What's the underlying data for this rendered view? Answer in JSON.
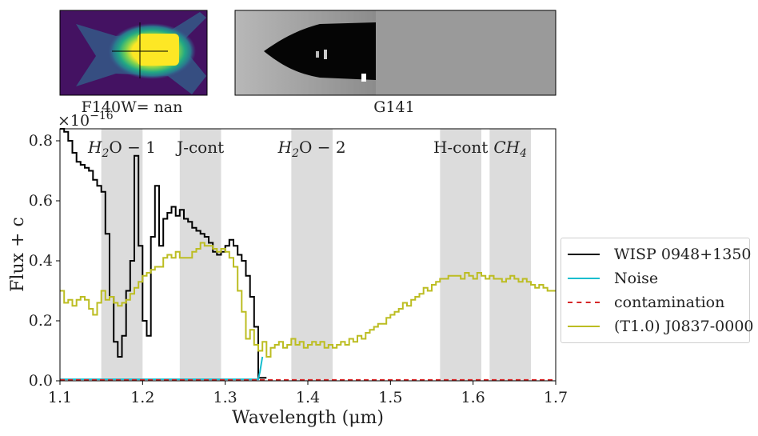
{
  "panels": {
    "image_label": "F140W= nan",
    "grism_label": "G141"
  },
  "chart_data": {
    "type": "line",
    "xlabel": "Wavelength (μm)",
    "ylabel": "Flux + c",
    "y_scale_label": "×10",
    "y_scale_exponent": "−16",
    "xlim": [
      1.1,
      1.7
    ],
    "ylim": [
      0.0,
      0.84
    ],
    "x_ticks": [
      "1.1",
      "1.2",
      "1.3",
      "1.4",
      "1.5",
      "1.6",
      "1.7"
    ],
    "y_ticks": [
      "0.0",
      "0.2",
      "0.4",
      "0.6",
      "0.8"
    ],
    "bands": [
      {
        "label": "H2O − 1",
        "x0": 1.15,
        "x1": 1.2,
        "math": true,
        "sub": "2",
        "pre": "H",
        "post": "O − 1"
      },
      {
        "label": "J-cont",
        "x0": 1.245,
        "x1": 1.295,
        "math": false
      },
      {
        "label": "H2O − 2",
        "x0": 1.38,
        "x1": 1.43,
        "math": true,
        "sub": "2",
        "pre": "H",
        "post": "O − 2"
      },
      {
        "label": "H-cont",
        "x0": 1.56,
        "x1": 1.61,
        "math": false
      },
      {
        "label": "CH4",
        "x0": 1.62,
        "x1": 1.67,
        "math": true,
        "sub": "4",
        "pre": "CH",
        "post": ""
      }
    ],
    "series": [
      {
        "name": "WISP 0948+1350",
        "color": "#000000",
        "style": "steps",
        "x": [
          1.1,
          1.105,
          1.11,
          1.115,
          1.12,
          1.125,
          1.13,
          1.135,
          1.14,
          1.145,
          1.15,
          1.155,
          1.16,
          1.165,
          1.17,
          1.175,
          1.18,
          1.185,
          1.19,
          1.195,
          1.2,
          1.205,
          1.21,
          1.215,
          1.22,
          1.225,
          1.23,
          1.235,
          1.24,
          1.245,
          1.25,
          1.255,
          1.26,
          1.265,
          1.27,
          1.275,
          1.28,
          1.285,
          1.29,
          1.295,
          1.3,
          1.305,
          1.31,
          1.315,
          1.32,
          1.325,
          1.33,
          1.335,
          1.34,
          1.345
        ],
        "values": [
          0.84,
          0.83,
          0.8,
          0.76,
          0.73,
          0.72,
          0.71,
          0.7,
          0.67,
          0.65,
          0.63,
          0.49,
          0.28,
          0.13,
          0.08,
          0.15,
          0.3,
          0.4,
          0.75,
          0.45,
          0.2,
          0.15,
          0.48,
          0.65,
          0.45,
          0.54,
          0.56,
          0.58,
          0.55,
          0.57,
          0.54,
          0.53,
          0.51,
          0.5,
          0.49,
          0.48,
          0.46,
          0.43,
          0.42,
          0.43,
          0.45,
          0.47,
          0.45,
          0.42,
          0.4,
          0.35,
          0.28,
          0.18,
          0.01,
          0.01
        ]
      },
      {
        "name": "Noise",
        "color": "#17becf",
        "style": "line",
        "x": [
          1.1,
          1.2,
          1.3,
          1.34,
          1.342,
          1.345
        ],
        "values": [
          0.005,
          0.005,
          0.005,
          0.005,
          0.03,
          0.08
        ]
      },
      {
        "name": "contamination",
        "color": "#d62728",
        "style": "dashed",
        "x": [
          1.1,
          1.7
        ],
        "values": [
          0.003,
          0.003
        ]
      },
      {
        "name": "(T1.0) J0837-0000",
        "color": "#bcbd22",
        "style": "steps",
        "x": [
          1.1,
          1.105,
          1.11,
          1.115,
          1.12,
          1.125,
          1.13,
          1.135,
          1.14,
          1.145,
          1.15,
          1.155,
          1.16,
          1.165,
          1.17,
          1.175,
          1.18,
          1.185,
          1.19,
          1.195,
          1.2,
          1.205,
          1.21,
          1.215,
          1.22,
          1.225,
          1.23,
          1.235,
          1.24,
          1.245,
          1.25,
          1.255,
          1.26,
          1.265,
          1.27,
          1.275,
          1.28,
          1.285,
          1.29,
          1.295,
          1.3,
          1.305,
          1.31,
          1.315,
          1.32,
          1.325,
          1.33,
          1.335,
          1.34,
          1.345,
          1.35,
          1.355,
          1.36,
          1.365,
          1.37,
          1.375,
          1.38,
          1.385,
          1.39,
          1.395,
          1.4,
          1.405,
          1.41,
          1.415,
          1.42,
          1.425,
          1.43,
          1.435,
          1.44,
          1.445,
          1.45,
          1.455,
          1.46,
          1.465,
          1.47,
          1.475,
          1.48,
          1.485,
          1.49,
          1.495,
          1.5,
          1.505,
          1.51,
          1.515,
          1.52,
          1.525,
          1.53,
          1.535,
          1.54,
          1.545,
          1.55,
          1.555,
          1.56,
          1.565,
          1.57,
          1.575,
          1.58,
          1.585,
          1.59,
          1.595,
          1.6,
          1.605,
          1.61,
          1.615,
          1.62,
          1.625,
          1.63,
          1.635,
          1.64,
          1.645,
          1.65,
          1.655,
          1.66,
          1.665,
          1.67,
          1.675,
          1.68,
          1.685,
          1.69,
          1.695
        ],
        "values": [
          0.3,
          0.26,
          0.27,
          0.25,
          0.27,
          0.28,
          0.27,
          0.24,
          0.22,
          0.26,
          0.3,
          0.27,
          0.28,
          0.26,
          0.25,
          0.26,
          0.27,
          0.29,
          0.31,
          0.33,
          0.35,
          0.36,
          0.37,
          0.38,
          0.38,
          0.41,
          0.42,
          0.41,
          0.43,
          0.41,
          0.41,
          0.41,
          0.43,
          0.44,
          0.46,
          0.45,
          0.45,
          0.44,
          0.43,
          0.44,
          0.43,
          0.41,
          0.38,
          0.3,
          0.23,
          0.14,
          0.17,
          0.12,
          0.1,
          0.13,
          0.08,
          0.11,
          0.12,
          0.13,
          0.11,
          0.12,
          0.14,
          0.12,
          0.13,
          0.11,
          0.12,
          0.13,
          0.12,
          0.13,
          0.11,
          0.12,
          0.11,
          0.12,
          0.13,
          0.12,
          0.14,
          0.13,
          0.15,
          0.14,
          0.16,
          0.17,
          0.18,
          0.19,
          0.19,
          0.21,
          0.22,
          0.23,
          0.24,
          0.26,
          0.25,
          0.27,
          0.28,
          0.29,
          0.31,
          0.3,
          0.32,
          0.33,
          0.34,
          0.34,
          0.35,
          0.35,
          0.35,
          0.34,
          0.36,
          0.35,
          0.34,
          0.36,
          0.35,
          0.34,
          0.35,
          0.34,
          0.34,
          0.33,
          0.34,
          0.35,
          0.34,
          0.33,
          0.34,
          0.33,
          0.32,
          0.31,
          0.32,
          0.31,
          0.3,
          0.3
        ]
      }
    ]
  }
}
